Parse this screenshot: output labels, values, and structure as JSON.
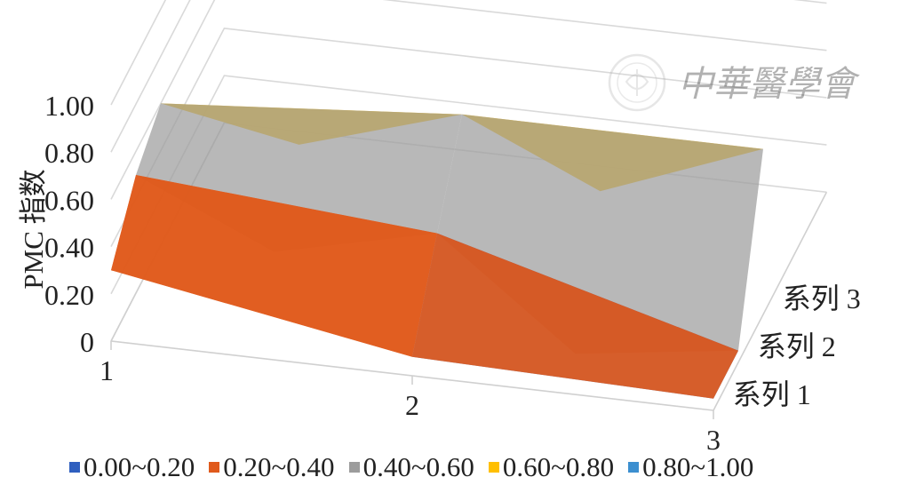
{
  "chart_data": {
    "type": "3d-surface",
    "ylabel": "PMC 指数",
    "x_categories": [
      "1",
      "2",
      "3"
    ],
    "depth_categories": [
      "系列 1",
      "系列 2",
      "系列 3"
    ],
    "y_ticks": [
      "1.00",
      "0.80",
      "0.60",
      "0.40",
      "0.20",
      "0"
    ],
    "ylim": [
      0,
      1.0
    ],
    "series": [
      {
        "name": "系列 1",
        "values": [
          0.3,
          0.08,
          0.05
        ]
      },
      {
        "name": "系列 2",
        "values": [
          0.5,
          0.4,
          0.05
        ]
      },
      {
        "name": "系列 3",
        "values": [
          0.6,
          0.7,
          0.7
        ]
      }
    ],
    "legend": [
      {
        "label": "0.00~0.20",
        "color": "#2f5fbf"
      },
      {
        "label": "0.20~0.40",
        "color": "#e05a1c"
      },
      {
        "label": "0.40~0.60",
        "color": "#9c9c9c"
      },
      {
        "label": "0.60~0.80",
        "color": "#ffbf00"
      },
      {
        "label": "0.80~1.00",
        "color": "#3c8fd0"
      }
    ],
    "legend_position": "bottom",
    "grid": true
  },
  "watermark": {
    "text": "中華醫學會"
  }
}
